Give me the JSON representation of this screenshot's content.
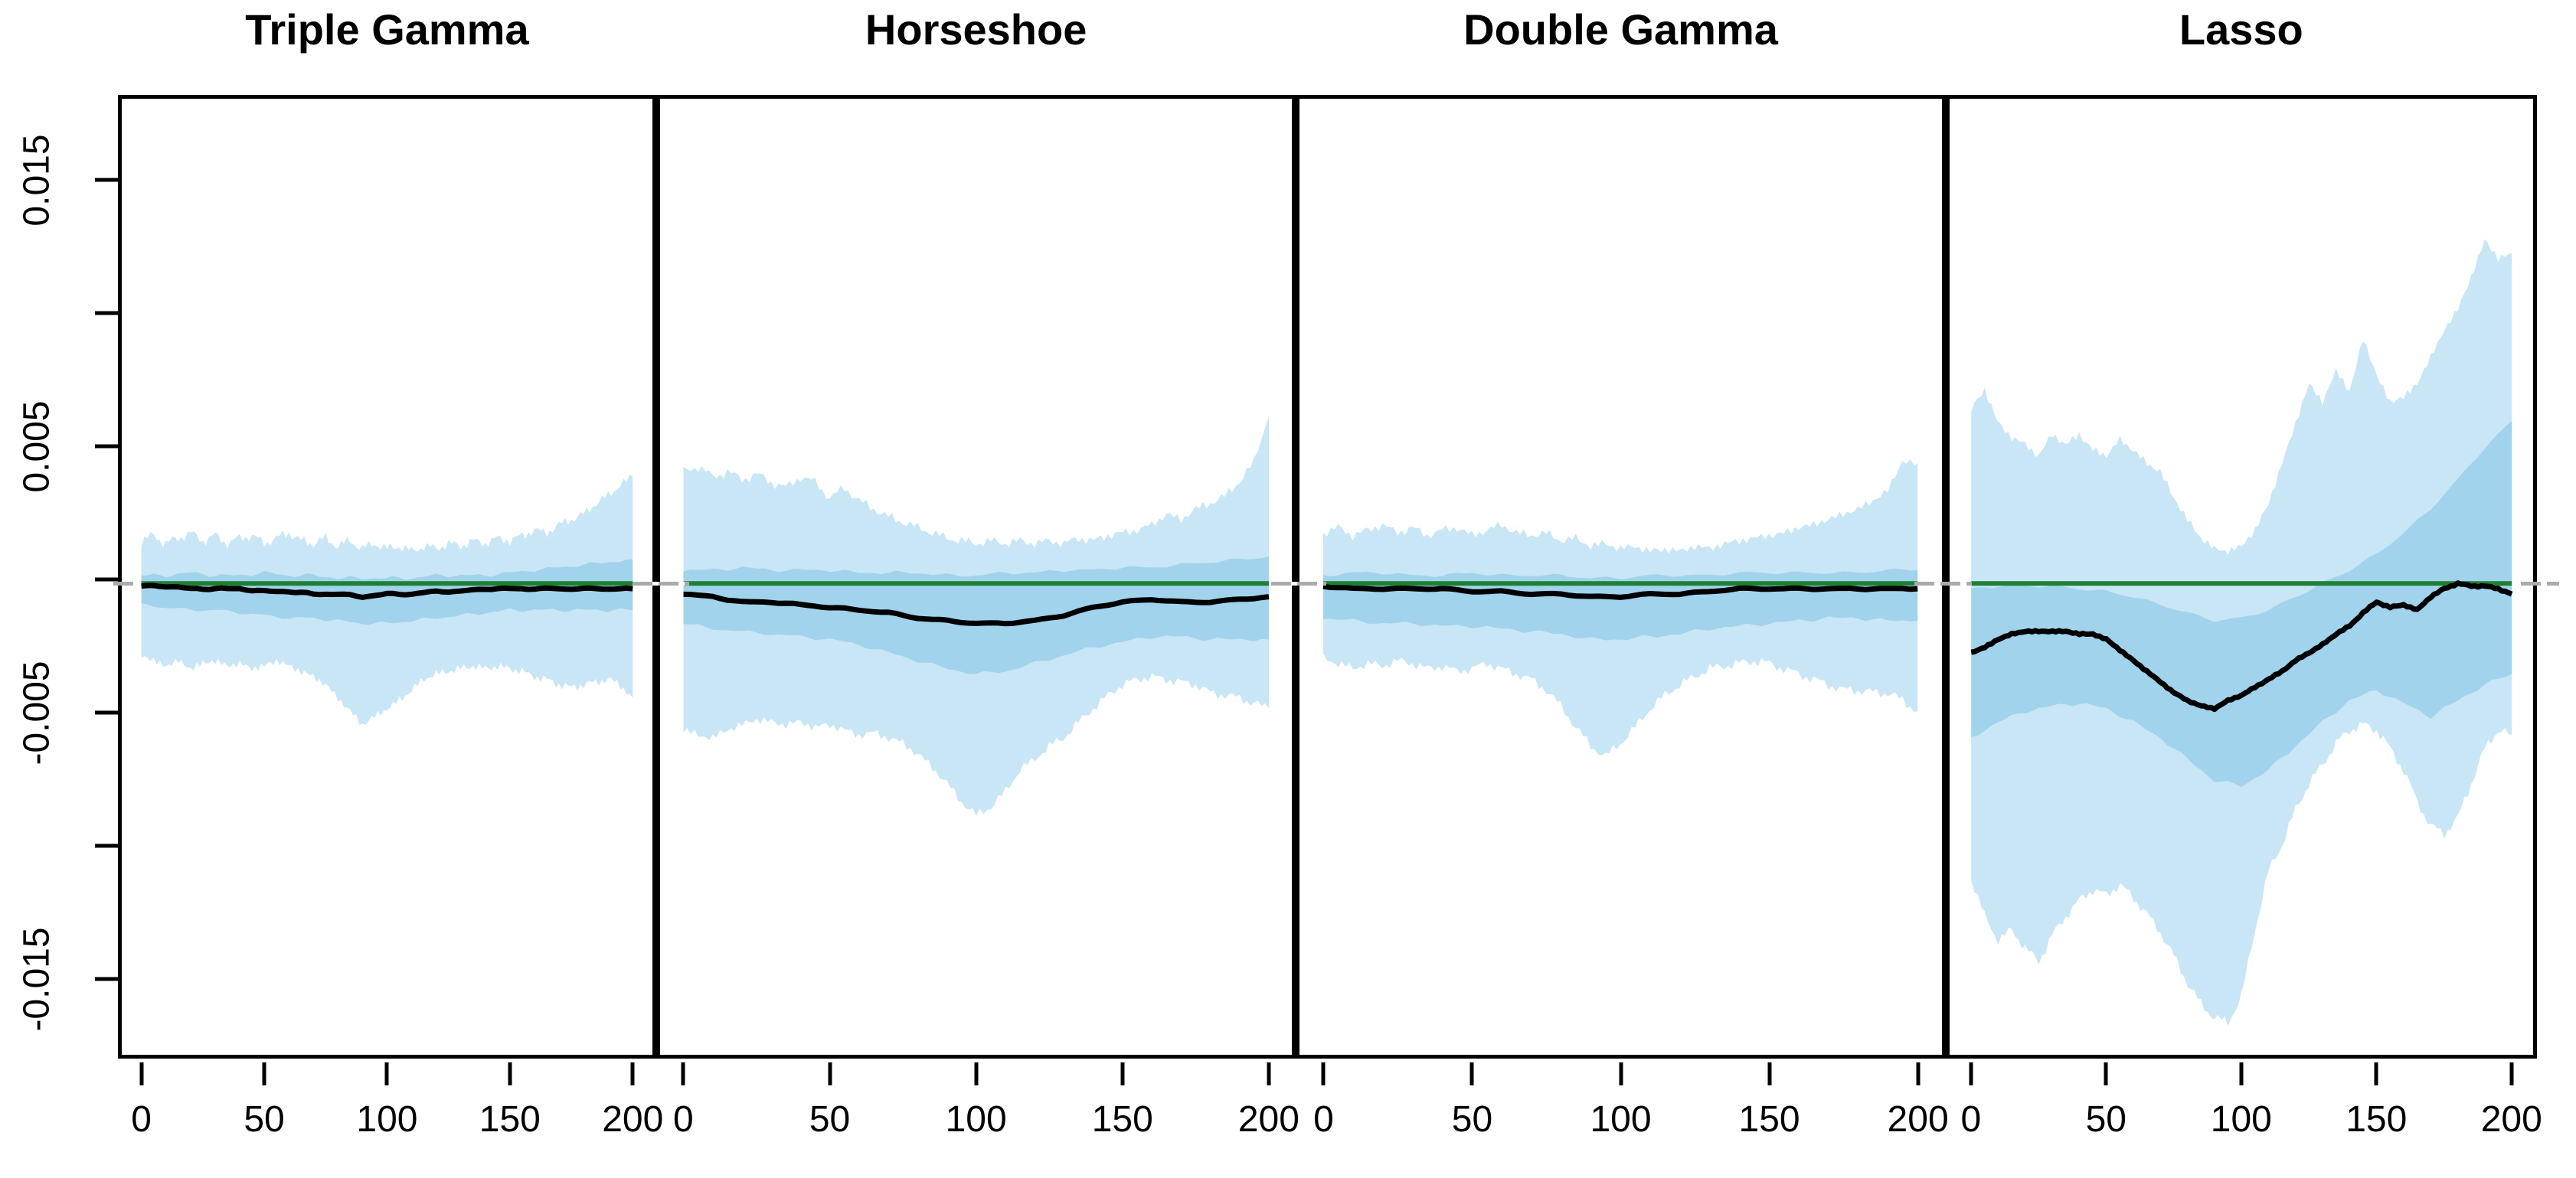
{
  "figure": {
    "kind": "four-panel posterior credible-interval band plot",
    "background": "#ffffff"
  },
  "colors": {
    "outer_band": "#c8e6f5",
    "inner_band": "#a1d3ec",
    "median_line": "#000000",
    "zero_line_green": "#1f7f33",
    "zero_line_gray": "#ababab",
    "frame": "#000000",
    "text": "#000000"
  },
  "axes": {
    "x_ticks": [
      {
        "v": 0,
        "label": "0"
      },
      {
        "v": 50,
        "label": "50"
      },
      {
        "v": 100,
        "label": "100"
      },
      {
        "v": 150,
        "label": "150"
      },
      {
        "v": 200,
        "label": "200"
      }
    ],
    "y_ticks": [
      {
        "v": 0.015,
        "label": "0.015"
      },
      {
        "v": 0.01,
        "label": ""
      },
      {
        "v": 0.005,
        "label": "0.005"
      },
      {
        "v": 0.0,
        "label": ""
      },
      {
        "v": -0.005,
        "label": "-0.005"
      },
      {
        "v": -0.01,
        "label": ""
      },
      {
        "v": -0.015,
        "label": "-0.015"
      }
    ],
    "x_range": [
      0,
      200
    ],
    "y_range_shown": [
      -0.0177,
      0.0182
    ],
    "grid": false,
    "legend": false
  },
  "chart_data": [
    {
      "type": "area",
      "title": "Triple Gamma",
      "x_range": [
        0,
        200
      ],
      "reference_line_y": 0,
      "outer_band": {
        "x_step": 5,
        "upper": [
          0.0016,
          0.0018,
          0.0015,
          0.0017,
          0.0019,
          0.0016,
          0.0018,
          0.0015,
          0.0017,
          0.0018,
          0.0015,
          0.0017,
          0.0019,
          0.0016,
          0.0015,
          0.0017,
          0.0014,
          0.0016,
          0.0013,
          0.0015,
          0.0013,
          0.0014,
          0.0012,
          0.0014,
          0.0013,
          0.0015,
          0.0014,
          0.0016,
          0.0015,
          0.0017,
          0.0016,
          0.0018,
          0.002,
          0.0019,
          0.0022,
          0.0024,
          0.0026,
          0.003,
          0.0033,
          0.0037,
          0.004
        ],
        "lower": [
          -0.0027,
          -0.0029,
          -0.0031,
          -0.0029,
          -0.0032,
          -0.003,
          -0.0029,
          -0.0031,
          -0.003,
          -0.0032,
          -0.0031,
          -0.0029,
          -0.0031,
          -0.0033,
          -0.0035,
          -0.0038,
          -0.0043,
          -0.0048,
          -0.0053,
          -0.005,
          -0.0047,
          -0.0044,
          -0.004,
          -0.0036,
          -0.0034,
          -0.0033,
          -0.0032,
          -0.0031,
          -0.0032,
          -0.0031,
          -0.0032,
          -0.0033,
          -0.0035,
          -0.0036,
          -0.0038,
          -0.0039,
          -0.0038,
          -0.0037,
          -0.0036,
          -0.0038,
          -0.0043
        ]
      },
      "inner_band": {
        "x_step": 10,
        "upper": [
          0.0003,
          0.0003,
          0.0004,
          0.0003,
          0.0003,
          0.0004,
          0.0003,
          0.0003,
          0.0002,
          0.0002,
          0.0002,
          0.0002,
          0.0003,
          0.0003,
          0.0003,
          0.0004,
          0.0005,
          0.0006,
          0.0007,
          0.0008,
          0.0009
        ],
        "lower": [
          -0.0008,
          -0.0009,
          -0.001,
          -0.001,
          -0.0011,
          -0.0012,
          -0.0013,
          -0.0013,
          -0.0014,
          -0.0015,
          -0.0015,
          -0.0014,
          -0.0013,
          -0.0012,
          -0.0011,
          -0.001,
          -0.001,
          -0.001,
          -0.001,
          -0.001,
          -0.001
        ]
      },
      "median": {
        "x_step": 10,
        "y": [
          -0.0001,
          -0.0001,
          -0.0002,
          -0.0002,
          -0.0002,
          -0.0003,
          -0.0003,
          -0.0004,
          -0.0004,
          -0.0005,
          -0.0004,
          -0.0004,
          -0.0003,
          -0.0003,
          -0.0002,
          -0.0002,
          -0.0002,
          -0.0002,
          -0.0002,
          -0.0002,
          -0.0002
        ]
      }
    },
    {
      "type": "area",
      "title": "Horseshoe",
      "x_range": [
        0,
        200
      ],
      "reference_line_y": 0,
      "outer_band": {
        "x_step": 5,
        "upper": [
          0.0042,
          0.0044,
          0.004,
          0.0042,
          0.0039,
          0.0041,
          0.0038,
          0.0036,
          0.004,
          0.0038,
          0.0032,
          0.0036,
          0.0031,
          0.0028,
          0.0025,
          0.0023,
          0.0021,
          0.0019,
          0.0017,
          0.0016,
          0.0015,
          0.0016,
          0.0015,
          0.0016,
          0.0015,
          0.0016,
          0.0015,
          0.0017,
          0.0016,
          0.0018,
          0.0019,
          0.002,
          0.0022,
          0.0026,
          0.0024,
          0.0028,
          0.003,
          0.0033,
          0.0038,
          0.0046,
          0.0063
        ],
        "lower": [
          -0.0055,
          -0.0057,
          -0.0058,
          -0.0055,
          -0.0053,
          -0.0051,
          -0.0052,
          -0.0053,
          -0.0052,
          -0.0054,
          -0.0053,
          -0.0055,
          -0.0057,
          -0.0056,
          -0.0058,
          -0.006,
          -0.0064,
          -0.0069,
          -0.0075,
          -0.0082,
          -0.0087,
          -0.0084,
          -0.0078,
          -0.007,
          -0.0066,
          -0.0061,
          -0.0058,
          -0.0052,
          -0.0047,
          -0.0042,
          -0.0038,
          -0.0036,
          -0.0035,
          -0.0036,
          -0.0037,
          -0.0038,
          -0.0041,
          -0.0042,
          -0.0043,
          -0.0045,
          -0.0047
        ]
      },
      "inner_band": {
        "x_step": 10,
        "upper": [
          0.0005,
          0.0005,
          0.0006,
          0.0005,
          0.0005,
          0.0005,
          0.0004,
          0.0004,
          0.0004,
          0.0003,
          0.0003,
          0.0004,
          0.0004,
          0.0005,
          0.0005,
          0.0006,
          0.0006,
          0.0007,
          0.0008,
          0.0009,
          0.001
        ],
        "lower": [
          -0.0015,
          -0.0017,
          -0.0018,
          -0.0019,
          -0.002,
          -0.0021,
          -0.0023,
          -0.0026,
          -0.0029,
          -0.0032,
          -0.0034,
          -0.0033,
          -0.003,
          -0.0027,
          -0.0024,
          -0.0022,
          -0.002,
          -0.002,
          -0.0021,
          -0.0021,
          -0.0021
        ]
      },
      "median": {
        "x_step": 10,
        "y": [
          -0.0004,
          -0.0005,
          -0.0007,
          -0.0007,
          -0.0008,
          -0.0009,
          -0.001,
          -0.0011,
          -0.0013,
          -0.0014,
          -0.0015,
          -0.0015,
          -0.0014,
          -0.0012,
          -0.0009,
          -0.0007,
          -0.0006,
          -0.0007,
          -0.0007,
          -0.0006,
          -0.0005
        ]
      }
    },
    {
      "type": "area",
      "title": "Double Gamma",
      "x_range": [
        0,
        200
      ],
      "reference_line_y": 0,
      "outer_band": {
        "x_step": 5,
        "upper": [
          0.0019,
          0.0021,
          0.0018,
          0.002,
          0.0022,
          0.0019,
          0.0021,
          0.0018,
          0.002,
          0.0021,
          0.0018,
          0.002,
          0.0022,
          0.0019,
          0.0018,
          0.0019,
          0.0016,
          0.0017,
          0.0014,
          0.0015,
          0.0013,
          0.0014,
          0.0012,
          0.0013,
          0.0012,
          0.0014,
          0.0013,
          0.0015,
          0.0016,
          0.0017,
          0.0018,
          0.0019,
          0.0021,
          0.0022,
          0.0024,
          0.0026,
          0.0028,
          0.0031,
          0.0035,
          0.0046,
          0.0045
        ],
        "lower": [
          -0.0028,
          -0.003,
          -0.0032,
          -0.003,
          -0.0031,
          -0.0029,
          -0.003,
          -0.0032,
          -0.0031,
          -0.0033,
          -0.0032,
          -0.003,
          -0.0032,
          -0.0034,
          -0.0036,
          -0.004,
          -0.0046,
          -0.0054,
          -0.0061,
          -0.0065,
          -0.006,
          -0.0054,
          -0.0047,
          -0.0042,
          -0.0038,
          -0.0035,
          -0.0032,
          -0.0031,
          -0.003,
          -0.0029,
          -0.003,
          -0.0032,
          -0.0034,
          -0.0036,
          -0.0038,
          -0.004,
          -0.004,
          -0.0041,
          -0.0041,
          -0.0044,
          -0.0048
        ]
      },
      "inner_band": {
        "x_step": 10,
        "upper": [
          0.0003,
          0.0004,
          0.0004,
          0.0003,
          0.0003,
          0.0004,
          0.0003,
          0.0003,
          0.0003,
          0.0002,
          0.0002,
          0.0003,
          0.0003,
          0.0003,
          0.0004,
          0.0004,
          0.0004,
          0.0004,
          0.0004,
          0.0005,
          0.0005
        ],
        "lower": [
          -0.0013,
          -0.0014,
          -0.0015,
          -0.0015,
          -0.0016,
          -0.0016,
          -0.0017,
          -0.0018,
          -0.0019,
          -0.0021,
          -0.0021,
          -0.002,
          -0.0019,
          -0.0017,
          -0.0016,
          -0.0015,
          -0.0014,
          -0.0013,
          -0.0013,
          -0.0014,
          -0.0014
        ]
      },
      "median": {
        "x_step": 10,
        "y": [
          -0.0001,
          -0.0002,
          -0.0002,
          -0.0002,
          -0.0002,
          -0.0003,
          -0.0003,
          -0.0004,
          -0.0004,
          -0.0005,
          -0.0005,
          -0.0004,
          -0.0004,
          -0.0003,
          -0.0002,
          -0.0002,
          -0.0002,
          -0.0002,
          -0.0002,
          -0.0002,
          -0.0002
        ]
      }
    },
    {
      "type": "area",
      "title": "Lasso",
      "x_range": [
        0,
        200
      ],
      "reference_line_y": 0,
      "outer_band": {
        "x_step": 5,
        "upper": [
          0.0065,
          0.0073,
          0.006,
          0.0055,
          0.0052,
          0.0048,
          0.0056,
          0.0052,
          0.0056,
          0.005,
          0.0048,
          0.0054,
          0.005,
          0.0045,
          0.0042,
          0.0032,
          0.0024,
          0.0017,
          0.0013,
          0.0012,
          0.0014,
          0.002,
          0.003,
          0.0045,
          0.006,
          0.0075,
          0.0068,
          0.008,
          0.0072,
          0.0092,
          0.0078,
          0.0068,
          0.007,
          0.0075,
          0.0085,
          0.0095,
          0.0103,
          0.0115,
          0.0129,
          0.0122,
          0.0124
        ],
        "lower": [
          -0.0111,
          -0.0125,
          -0.0134,
          -0.013,
          -0.0137,
          -0.0142,
          -0.0132,
          -0.0125,
          -0.0119,
          -0.0115,
          -0.0117,
          -0.0113,
          -0.0118,
          -0.0124,
          -0.0131,
          -0.014,
          -0.015,
          -0.0158,
          -0.0163,
          -0.0165,
          -0.0155,
          -0.013,
          -0.0108,
          -0.0098,
          -0.0085,
          -0.0075,
          -0.0068,
          -0.006,
          -0.0055,
          -0.0053,
          -0.0055,
          -0.0062,
          -0.007,
          -0.0082,
          -0.0091,
          -0.0094,
          -0.0088,
          -0.0075,
          -0.0062,
          -0.0055,
          -0.0057
        ]
      },
      "inner_band": {
        "x_step": 10,
        "upper": [
          -0.0002,
          -0.0001,
          -0.0001,
          -0.0001,
          -0.0002,
          -0.0003,
          -0.0005,
          -0.0008,
          -0.0011,
          -0.0014,
          -0.0013,
          -0.001,
          -0.0005,
          0.0,
          0.0005,
          0.0011,
          0.0019,
          0.0028,
          0.0039,
          0.0051,
          0.0061
        ],
        "lower": [
          -0.0058,
          -0.0052,
          -0.0048,
          -0.0046,
          -0.0045,
          -0.0047,
          -0.0052,
          -0.0058,
          -0.0066,
          -0.0074,
          -0.0076,
          -0.007,
          -0.0061,
          -0.0052,
          -0.0044,
          -0.004,
          -0.0045,
          -0.005,
          -0.0044,
          -0.0038,
          -0.0034
        ]
      },
      "median": {
        "x_step": 5,
        "y": [
          -0.0026,
          -0.0024,
          -0.0021,
          -0.0019,
          -0.0018,
          -0.0018,
          -0.0018,
          -0.0018,
          -0.0019,
          -0.0019,
          -0.0021,
          -0.0025,
          -0.0029,
          -0.0033,
          -0.0037,
          -0.0041,
          -0.0044,
          -0.0046,
          -0.0047,
          -0.0044,
          -0.0042,
          -0.0039,
          -0.0036,
          -0.0033,
          -0.0029,
          -0.0026,
          -0.0023,
          -0.0019,
          -0.0016,
          -0.0011,
          -0.0007,
          -0.0009,
          -0.0008,
          -0.001,
          -0.0005,
          -0.0002,
          0.0,
          -0.0001,
          -0.0001,
          -0.0002,
          -0.0004
        ]
      }
    }
  ]
}
